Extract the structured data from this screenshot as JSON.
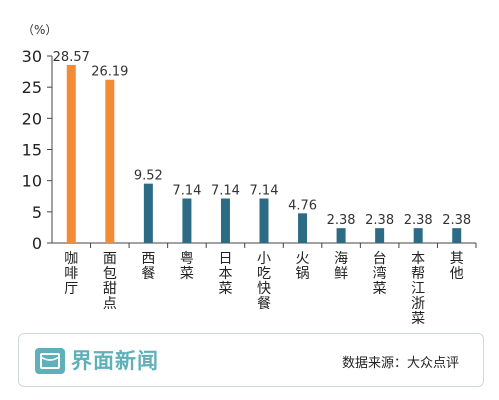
{
  "chart_data": {
    "type": "bar",
    "title": "",
    "xlabel": "",
    "ylabel": "",
    "unit_label": "（%）",
    "ylim": [
      0,
      30
    ],
    "yticks": [
      0,
      5,
      10,
      15,
      20,
      25,
      30
    ],
    "grid": false,
    "categories": [
      "咖啡厅",
      "面包甜点",
      "西餐",
      "粤菜",
      "日本菜",
      "小吃快餐",
      "火锅",
      "海鲜",
      "台湾菜",
      "本帮江浙菜",
      "其他"
    ],
    "values": [
      28.57,
      26.19,
      9.52,
      7.14,
      7.14,
      7.14,
      4.76,
      2.38,
      2.38,
      2.38,
      2.38
    ],
    "value_labels": [
      "28.57",
      "26.19",
      "9.52",
      "7.14",
      "7.14",
      "7.14",
      "4.76",
      "2.38",
      "2.38",
      "2.38",
      "2.38"
    ],
    "bar_colors": [
      "#f28b33",
      "#f28b33",
      "#2d6b84",
      "#2d6b84",
      "#2d6b84",
      "#2d6b84",
      "#2d6b84",
      "#2d6b84",
      "#2d6b84",
      "#2d6b84",
      "#2d6b84"
    ]
  },
  "footer": {
    "brand": "界面新闻",
    "logo_icon": "jiemian-logo-icon",
    "brand_color": "#5fb0b9",
    "source": "数据来源：大众点评"
  }
}
